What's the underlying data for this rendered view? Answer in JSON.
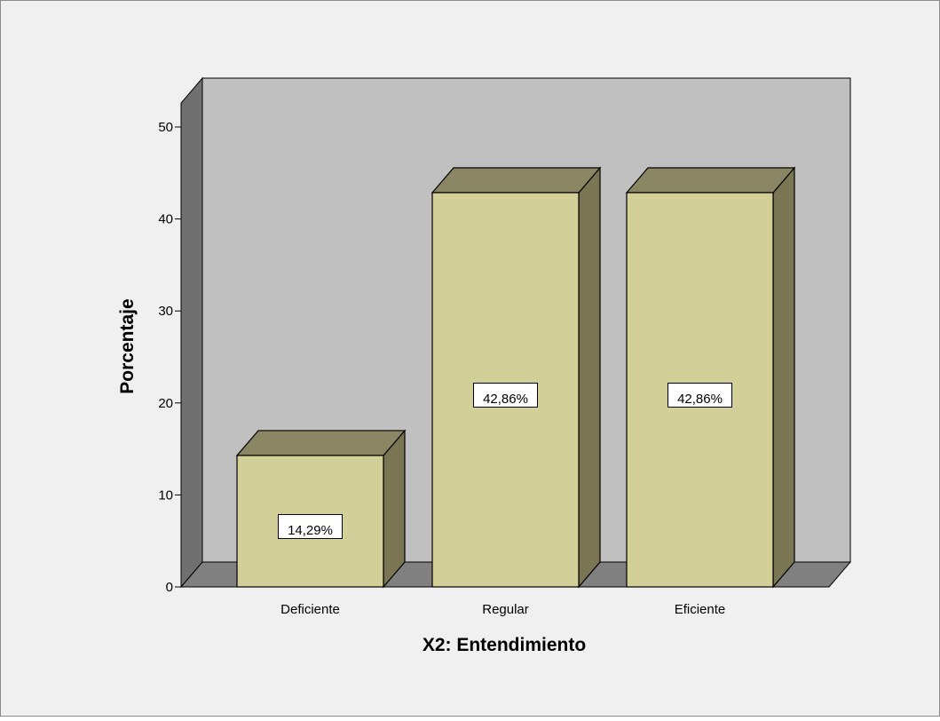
{
  "chart_data": {
    "type": "bar",
    "categories": [
      "Deficiente",
      "Regular",
      "Eficiente"
    ],
    "values": [
      14.29,
      42.86,
      42.86
    ],
    "data_labels": [
      "14,29%",
      "42,86%",
      "42,86%"
    ],
    "xlabel": "X2: Entendimiento",
    "ylabel": "Porcentaje",
    "ylim": [
      0,
      55
    ],
    "yticks": [
      0,
      10,
      20,
      30,
      40,
      50
    ],
    "ytick_labels": [
      "0",
      "10",
      "20",
      "30",
      "40",
      "50"
    ],
    "style": "3d",
    "colors": {
      "page_background": "#f0f0f0",
      "plot_back_wall": "#c0c0c0",
      "side_wall": "#707070",
      "floor": "#808080",
      "bar_front": "#d3cf98",
      "bar_top": "#8a8562",
      "bar_side": "#7a7552",
      "outline": "#000000",
      "label_box": "#ffffff"
    }
  }
}
